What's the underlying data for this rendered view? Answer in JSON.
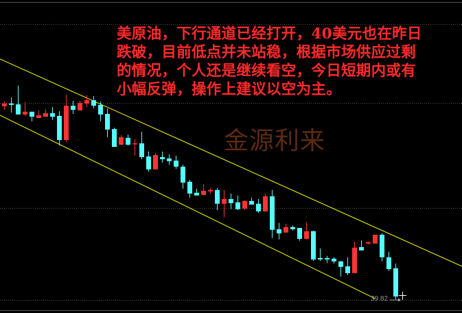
{
  "chart_data": {
    "type": "candlestick",
    "title": "",
    "instrument_note": "",
    "colors": {
      "up": "#ff3333",
      "down": "#55ffff",
      "channel": "#ffff00",
      "background": "#000000",
      "annotation_text": "#ff2a2a",
      "watermark": "#5c2a12",
      "low_label": "#9a9a9a"
    },
    "candles": [
      [
        46.85,
        47.02,
        46.72,
        46.95
      ],
      [
        46.95,
        47.17,
        46.62,
        46.9
      ],
      [
        46.92,
        47.6,
        46.55,
        46.55
      ],
      [
        46.55,
        47.0,
        46.5,
        46.65
      ],
      [
        46.65,
        46.65,
        46.3,
        46.47
      ],
      [
        46.42,
        46.7,
        46.42,
        46.52
      ],
      [
        46.47,
        46.75,
        46.47,
        46.6
      ],
      [
        46.6,
        46.82,
        46.35,
        46.47
      ],
      [
        46.5,
        46.67,
        45.42,
        45.62
      ],
      [
        45.62,
        47.27,
        45.55,
        46.87
      ],
      [
        46.87,
        47.05,
        46.57,
        46.72
      ],
      [
        46.7,
        47.05,
        46.7,
        46.97
      ],
      [
        46.95,
        47.25,
        46.82,
        47.07
      ],
      [
        47.07,
        47.22,
        46.77,
        46.87
      ],
      [
        46.9,
        47.02,
        46.3,
        46.55
      ],
      [
        46.57,
        46.77,
        45.72,
        46.0
      ],
      [
        46.02,
        46.07,
        45.37,
        45.37
      ],
      [
        45.45,
        45.8,
        45.45,
        45.72
      ],
      [
        45.7,
        45.82,
        45.42,
        45.45
      ],
      [
        45.47,
        45.65,
        45.05,
        45.5
      ],
      [
        45.5,
        45.92,
        44.92,
        45.0
      ],
      [
        45.02,
        45.2,
        44.47,
        44.55
      ],
      [
        44.55,
        45.15,
        44.55,
        45.07
      ],
      [
        45.0,
        45.2,
        44.8,
        44.92
      ],
      [
        44.95,
        45.1,
        44.72,
        44.85
      ],
      [
        44.87,
        45.05,
        44.57,
        44.65
      ],
      [
        44.65,
        44.72,
        43.85,
        44.07
      ],
      [
        44.1,
        44.17,
        43.52,
        43.67
      ],
      [
        43.7,
        43.85,
        43.6,
        43.6
      ],
      [
        43.62,
        44.02,
        43.62,
        43.77
      ],
      [
        43.75,
        43.87,
        43.67,
        43.8
      ],
      [
        43.8,
        43.87,
        43.07,
        43.3
      ],
      [
        43.3,
        43.8,
        42.8,
        43.47
      ],
      [
        43.47,
        43.67,
        43.1,
        43.32
      ],
      [
        43.35,
        43.6,
        43.07,
        43.1
      ],
      [
        43.12,
        43.42,
        43.07,
        43.4
      ],
      [
        43.4,
        43.52,
        43.27,
        43.27
      ],
      [
        43.3,
        43.47,
        42.97,
        43.02
      ],
      [
        43.02,
        43.67,
        43.02,
        43.57
      ],
      [
        43.57,
        43.8,
        42.05,
        42.35
      ],
      [
        42.37,
        42.6,
        42.0,
        42.22
      ],
      [
        42.25,
        42.57,
        42.25,
        42.45
      ],
      [
        42.45,
        42.5,
        42.32,
        42.37
      ],
      [
        42.42,
        42.42,
        41.95,
        42.02
      ],
      [
        42.02,
        42.62,
        42.0,
        42.3
      ],
      [
        42.3,
        42.32,
        41.22,
        41.27
      ],
      [
        41.32,
        41.67,
        41.22,
        41.27
      ],
      [
        41.32,
        41.4,
        41.15,
        41.27
      ],
      [
        41.3,
        41.35,
        41.12,
        41.2
      ],
      [
        41.2,
        41.22,
        40.65,
        41.0
      ],
      [
        41.02,
        41.35,
        40.7,
        40.77
      ],
      [
        40.77,
        41.92,
        40.77,
        41.7
      ],
      [
        41.72,
        41.97,
        41.6,
        41.6
      ],
      [
        41.85,
        41.92,
        41.82,
        41.9
      ],
      [
        41.85,
        42.17,
        41.85,
        42.17
      ],
      [
        42.17,
        42.22,
        41.2,
        41.35
      ],
      [
        41.35,
        41.55,
        40.85,
        40.92
      ],
      [
        40.95,
        41.12,
        39.82,
        39.92
      ]
    ],
    "candle_fields": [
      "open",
      "high",
      "low",
      "close"
    ],
    "channel_lines": [
      {
        "from_index": -0.6,
        "from_price": 48.57,
        "to_index": 66.7,
        "to_price": 41.02
      },
      {
        "from_index": -0.6,
        "from_price": 46.52,
        "to_index": 54,
        "to_price": 39.85
      }
    ],
    "low_label": "39.82",
    "grid": true
  },
  "annotation": {
    "lines": [
      "美原油，下行通道已经打开，40美元也在昨日",
      "跌破，目前低点并未站稳，根据市场供应过剩",
      "的情况，个人还是继续看空，今日短期内或有",
      "小幅反弹，操作上建议以空为主。"
    ]
  },
  "watermark": "金源利来"
}
